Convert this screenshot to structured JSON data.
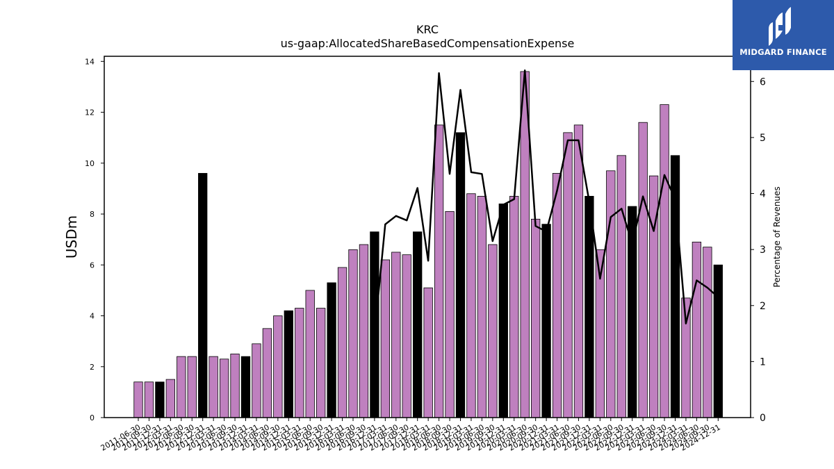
{
  "chart_data": {
    "type": "bar",
    "title": "KRC",
    "subtitle": "us-gaap:AllocatedShareBasedCompensationExpense",
    "ylabel": "USDm",
    "y2label": "Percentage of Revenues",
    "ylim": [
      0,
      14.2
    ],
    "y2lim": [
      0,
      6.45
    ],
    "yticks": [
      0,
      2,
      4,
      6,
      8,
      10,
      12,
      14
    ],
    "y2ticks": [
      0,
      1,
      2,
      3,
      4,
      5,
      6
    ],
    "categories": [
      "2011-06-30",
      "2011-09-30",
      "2011-12-31",
      "2012-03-31",
      "2012-06-30",
      "2012-09-30",
      "2012-12-31",
      "2013-03-31",
      "2013-06-30",
      "2013-09-30",
      "2013-12-31",
      "2014-03-31",
      "2014-06-30",
      "2014-09-30",
      "2014-12-31",
      "2015-03-31",
      "2015-06-30",
      "2015-09-30",
      "2015-12-31",
      "2016-03-31",
      "2016-06-30",
      "2016-09-30",
      "2016-12-31",
      "2017-03-31",
      "2017-06-30",
      "2017-09-30",
      "2017-12-31",
      "2018-03-31",
      "2018-06-30",
      "2018-09-30",
      "2018-12-31",
      "2019-03-31",
      "2019-06-30",
      "2019-09-30",
      "2019-12-31",
      "2020-03-31",
      "2020-06-30",
      "2020-09-30",
      "2020-12-31",
      "2021-03-31",
      "2021-06-30",
      "2021-09-30",
      "2021-12-31",
      "2022-03-31",
      "2022-06-30",
      "2022-09-30",
      "2022-12-31",
      "2023-03-31",
      "2023-06-30",
      "2023-09-30",
      "2023-12-31",
      "2024-03-31",
      "2024-06-30",
      "2024-09-30",
      "2024-12-31"
    ],
    "series": [
      {
        "type": "bar",
        "values": [
          1.4,
          1.4,
          1.4,
          1.5,
          2.4,
          2.4,
          9.6,
          2.4,
          2.3,
          2.5,
          2.4,
          2.9,
          3.5,
          4.0,
          4.2,
          4.3,
          5.0,
          4.3,
          5.3,
          5.9,
          6.6,
          6.8,
          7.3,
          6.2,
          6.5,
          6.4,
          7.3,
          5.1,
          11.5,
          8.1,
          11.2,
          8.8,
          8.7,
          6.8,
          8.4,
          8.7,
          13.6,
          7.8,
          7.6,
          9.6,
          11.2,
          11.5,
          8.7,
          6.6,
          9.7,
          10.3,
          8.3,
          11.6,
          9.5,
          12.3,
          10.3,
          4.7,
          6.9,
          6.7,
          6.0
        ],
        "highlight": [
          false,
          false,
          true,
          false,
          false,
          false,
          true,
          false,
          false,
          false,
          true,
          false,
          false,
          false,
          true,
          false,
          false,
          false,
          true,
          false,
          false,
          false,
          true,
          false,
          false,
          false,
          true,
          false,
          false,
          false,
          true,
          false,
          false,
          false,
          true,
          false,
          false,
          false,
          true,
          false,
          false,
          false,
          true,
          false,
          false,
          false,
          true,
          false,
          false,
          false,
          true,
          false,
          false,
          false,
          true
        ]
      },
      {
        "type": "line",
        "axis": "right",
        "values": [
          null,
          null,
          null,
          null,
          null,
          null,
          null,
          null,
          null,
          null,
          null,
          null,
          null,
          null,
          null,
          null,
          null,
          null,
          null,
          null,
          null,
          null,
          1.5,
          3.45,
          3.6,
          3.52,
          4.1,
          2.8,
          6.15,
          4.35,
          5.85,
          4.38,
          4.35,
          3.15,
          3.8,
          3.9,
          6.2,
          3.42,
          3.32,
          4.05,
          4.95,
          4.95,
          3.85,
          2.48,
          3.58,
          3.73,
          3.1,
          3.95,
          3.33,
          4.33,
          3.9,
          1.68,
          2.45,
          2.32,
          2.15
        ]
      }
    ],
    "colors": {
      "bar": "#bf80bf",
      "bar_highlight": "#000000",
      "line": "#000000",
      "edge": "#000000"
    }
  },
  "logo": {
    "text": "MIDGARD FINANCE",
    "icon": "midgard-logo-icon",
    "bg": "#2d5aab"
  }
}
